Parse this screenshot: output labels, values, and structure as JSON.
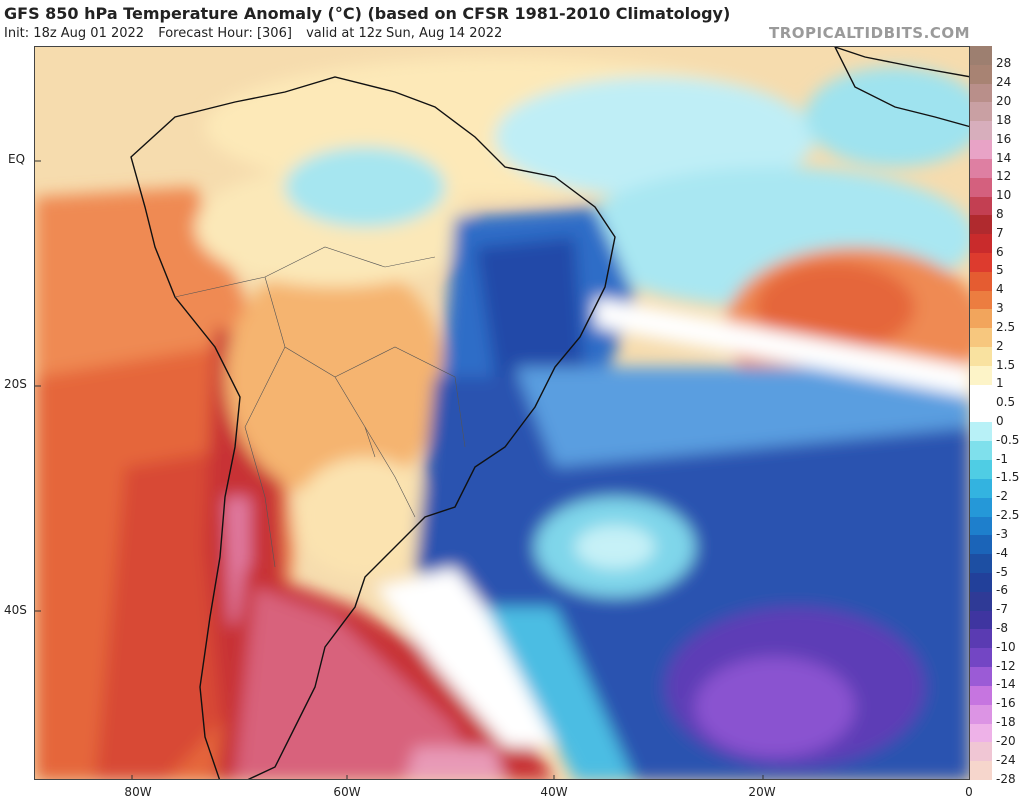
{
  "header": {
    "title": "GFS 850 hPa Temperature Anomaly (°C) (based on CFSR 1981-2010 Climatology)",
    "init": "Init: 18z Aug 01 2022",
    "forecast_hour": "Forecast Hour: [306]",
    "valid": "valid at 12z Sun, Aug 14 2022",
    "site": "TROPICALTIDBITS.COM"
  },
  "axes": {
    "y_labels": [
      "EQ",
      "20S",
      "40S"
    ],
    "x_labels": [
      "80W",
      "60W",
      "40W",
      "20W",
      "0"
    ]
  },
  "colorbar": {
    "labels": [
      "28",
      "24",
      "20",
      "18",
      "16",
      "14",
      "12",
      "10",
      "8",
      "7",
      "6",
      "5",
      "4",
      "3",
      "2.5",
      "2",
      "1.5",
      "1",
      "0.5",
      "0",
      "-0.5",
      "-1",
      "-1.5",
      "-2",
      "-2.5",
      "-3",
      "-4",
      "-5",
      "-6",
      "-7",
      "-8",
      "-10",
      "-12",
      "-14",
      "-16",
      "-18",
      "-20",
      "-24",
      "-28"
    ],
    "colors": [
      "#9d7f70",
      "#a88373",
      "#b98f8a",
      "#c9a0a3",
      "#d7aebc",
      "#e8a3c6",
      "#de7fa2",
      "#d4607e",
      "#c33f52",
      "#b02a2e",
      "#c92b2c",
      "#dd3b2e",
      "#e55c31",
      "#ec7d40",
      "#f2a55c",
      "#f7c77e",
      "#f9e2a0",
      "#fdf4c8",
      "#ffffff",
      "#ffffff",
      "#b8f1f7",
      "#7fe0ec",
      "#4fcde4",
      "#33b3e0",
      "#2598d8",
      "#1e7fcc",
      "#1b64b8",
      "#1d4fa3",
      "#22409a",
      "#2f3a96",
      "#3f35a0",
      "#5a3bb2",
      "#7346c4",
      "#9b5bd6",
      "#c675e0",
      "#dc94e4",
      "#eeb2e8",
      "#f0c6d4",
      "#f6d6cc"
    ]
  },
  "map": {
    "regions": [
      "south-america",
      "africa"
    ]
  }
}
